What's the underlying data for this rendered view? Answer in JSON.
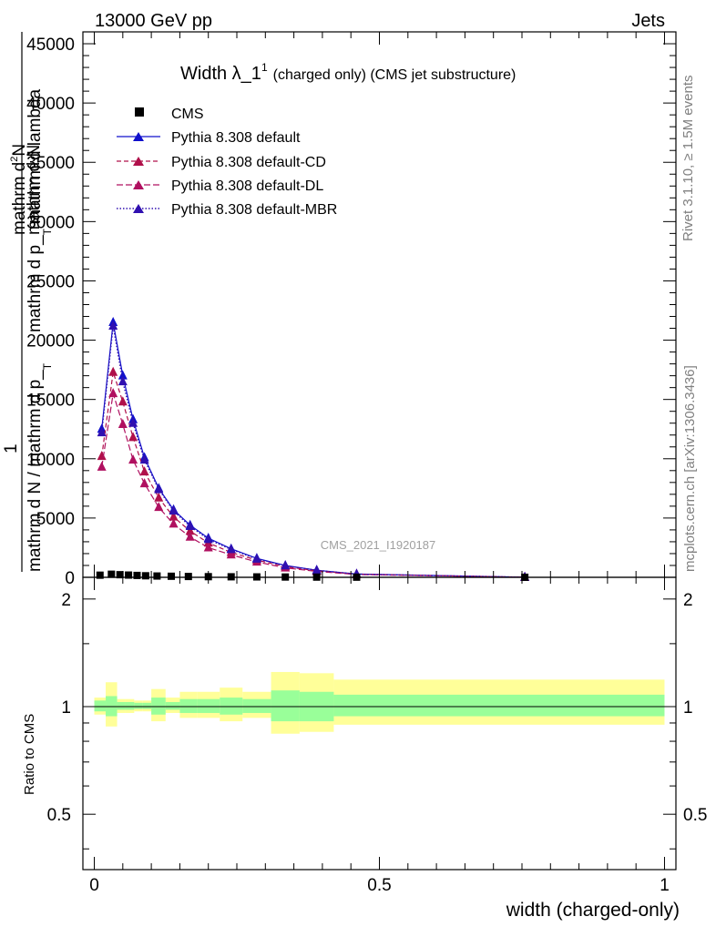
{
  "header": {
    "left": "13000 GeV pp",
    "right": "Jets"
  },
  "side": {
    "rivet": "Rivet 3.1.10, ≥ 1.5M events",
    "mcplots": "mcplots.cern.ch [arXiv:1306.3436]"
  },
  "watermark": "CMS_2021_I1920187",
  "title": {
    "main": "Width λ_1",
    "sup": "1",
    "sub": "(charged only) (CMS jet substructure)"
  },
  "ylabel_main": {
    "one": "1",
    "line_a": "mathrm d N",
    "line_b": "mathrm d p_",
    "line_b_sub": "T",
    "line_b_rest": " mathrm d lambda",
    "frac_top": "mathrm d",
    "frac_top_sup": "2",
    "frac_top_rest": "N",
    "denom": "mathrm d N / mathrm d p_",
    "denom_sub": "T"
  },
  "xlabel": "width (charged-only)",
  "ylabel_ratio": "Ratio to CMS",
  "colors": {
    "default": "#1010cc",
    "cd": "#b0104a",
    "dl": "#b01060",
    "mbr": "#3010b0",
    "band_inner": "#99ff99",
    "band_outer": "#ffff99"
  },
  "chart_data": [
    {
      "type": "line",
      "xlim": [
        -0.02,
        1.02
      ],
      "ylim": [
        0,
        46000
      ],
      "x_ticks": [
        0,
        0.5,
        1
      ],
      "x_tick_labels": [
        "0",
        "0.5",
        "1"
      ],
      "y_ticks": [
        0,
        5000,
        10000,
        15000,
        20000,
        25000,
        30000,
        35000,
        40000,
        45000
      ],
      "y_tick_labels": [
        "0",
        "5000",
        "10000",
        "15000",
        "20000",
        "25000",
        "30000",
        "35000",
        "40000",
        "45000"
      ],
      "legend_position": "top-left",
      "cms": {
        "name": "CMS",
        "x": [
          0.01,
          0.03,
          0.045,
          0.06,
          0.075,
          0.09,
          0.11,
          0.135,
          0.165,
          0.2,
          0.24,
          0.285,
          0.335,
          0.39,
          0.46,
          0.755
        ],
        "y": [
          180,
          260,
          220,
          190,
          160,
          130,
          110,
          90,
          70,
          55,
          45,
          35,
          25,
          18,
          12,
          4
        ]
      },
      "series": [
        {
          "name": "Pythia 8.308 default",
          "style": "solid",
          "x": [
            0.013,
            0.033,
            0.05,
            0.068,
            0.088,
            0.113,
            0.139,
            0.168,
            0.2,
            0.24,
            0.285,
            0.335,
            0.39,
            0.46,
            0.755
          ],
          "y": [
            12500,
            21500,
            17000,
            13300,
            10100,
            7500,
            5700,
            4400,
            3300,
            2400,
            1600,
            1000,
            600,
            280,
            10
          ]
        },
        {
          "name": "Pythia 8.308 default-CD",
          "style": "dashed",
          "x": [
            0.013,
            0.033,
            0.05,
            0.068,
            0.088,
            0.113,
            0.139,
            0.168,
            0.2,
            0.24,
            0.285,
            0.335,
            0.39,
            0.46,
            0.755
          ],
          "y": [
            10200,
            17300,
            14800,
            11800,
            8900,
            6700,
            5100,
            3900,
            2900,
            2100,
            1450,
            900,
            550,
            260,
            10
          ]
        },
        {
          "name": "Pythia 8.308 default-DL",
          "style": "dashed",
          "x": [
            0.013,
            0.033,
            0.05,
            0.068,
            0.088,
            0.113,
            0.139,
            0.168,
            0.2,
            0.24,
            0.285,
            0.335,
            0.39,
            0.46,
            0.755
          ],
          "y": [
            9300,
            15500,
            12900,
            9900,
            7900,
            5900,
            4500,
            3400,
            2500,
            1900,
            1300,
            800,
            500,
            240,
            10
          ]
        },
        {
          "name": "Pythia 8.308 default-MBR",
          "style": "dotted",
          "x": [
            0.013,
            0.033,
            0.05,
            0.068,
            0.088,
            0.113,
            0.139,
            0.168,
            0.2,
            0.24,
            0.285,
            0.335,
            0.39,
            0.46,
            0.755
          ],
          "y": [
            12200,
            21200,
            16500,
            13000,
            9900,
            7400,
            5600,
            4300,
            3200,
            2350,
            1550,
            980,
            590,
            270,
            10
          ]
        }
      ]
    },
    {
      "type": "area",
      "xlim": [
        -0.02,
        1.02
      ],
      "ylim": [
        0.35,
        2.3
      ],
      "log_scale": true,
      "y_ticks": [
        0.5,
        1,
        2
      ],
      "y_tick_labels": [
        "0.5",
        "1",
        "2"
      ],
      "reference_line": 1,
      "bins": [
        0,
        0.02,
        0.04,
        0.055,
        0.07,
        0.085,
        0.1,
        0.125,
        0.15,
        0.18,
        0.22,
        0.26,
        0.31,
        0.36,
        0.42,
        0.5,
        1.0
      ],
      "inner_band": [
        [
          0.97,
          1.04
        ],
        [
          0.94,
          1.07
        ],
        [
          0.98,
          1.03
        ],
        [
          0.98,
          1.03
        ],
        [
          0.985,
          1.025
        ],
        [
          0.985,
          1.025
        ],
        [
          0.95,
          1.06
        ],
        [
          0.98,
          1.03
        ],
        [
          0.96,
          1.05
        ],
        [
          0.96,
          1.05
        ],
        [
          0.95,
          1.06
        ],
        [
          0.96,
          1.05
        ],
        [
          0.91,
          1.11
        ],
        [
          0.91,
          1.1
        ],
        [
          0.94,
          1.08
        ],
        [
          0.94,
          1.08
        ]
      ],
      "outer_band": [
        [
          0.95,
          1.06
        ],
        [
          0.88,
          1.17
        ],
        [
          0.96,
          1.05
        ],
        [
          0.96,
          1.05
        ],
        [
          0.97,
          1.04
        ],
        [
          0.97,
          1.04
        ],
        [
          0.91,
          1.12
        ],
        [
          0.96,
          1.06
        ],
        [
          0.93,
          1.1
        ],
        [
          0.93,
          1.1
        ],
        [
          0.91,
          1.13
        ],
        [
          0.93,
          1.1
        ],
        [
          0.84,
          1.25
        ],
        [
          0.85,
          1.24
        ],
        [
          0.89,
          1.19
        ],
        [
          0.89,
          1.19
        ]
      ]
    }
  ]
}
